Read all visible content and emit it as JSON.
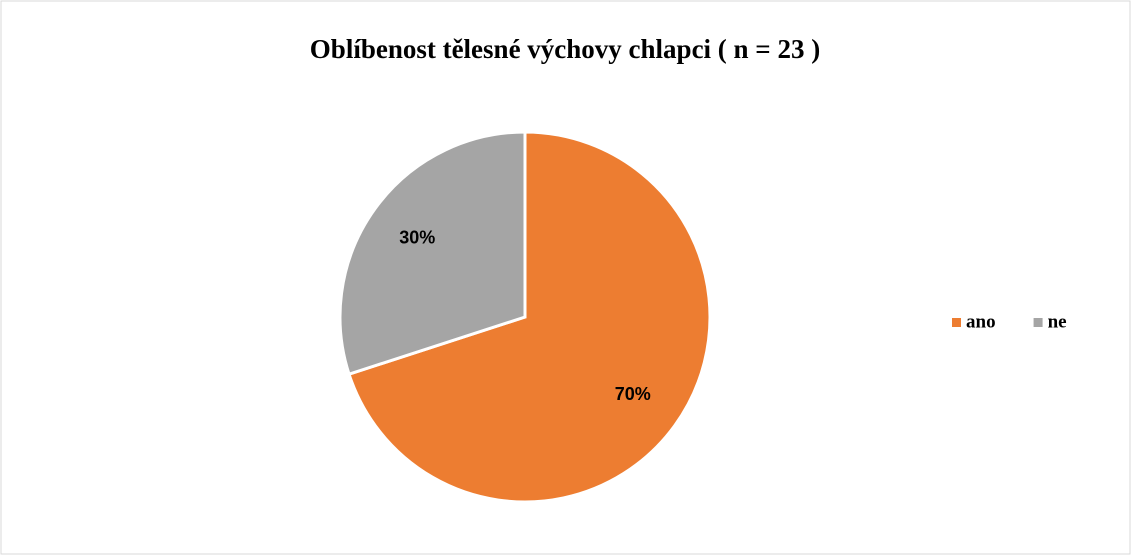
{
  "chart_data": {
    "type": "pie",
    "title": "Oblíbenost tělesné výchovy chlapci ( n = 23 )",
    "categories": [
      "ano",
      "ne"
    ],
    "values": [
      70,
      30
    ],
    "value_labels": [
      "70%",
      "30%"
    ],
    "colors": [
      "#ed7d31",
      "#a5a5a5"
    ],
    "legend": "right"
  }
}
